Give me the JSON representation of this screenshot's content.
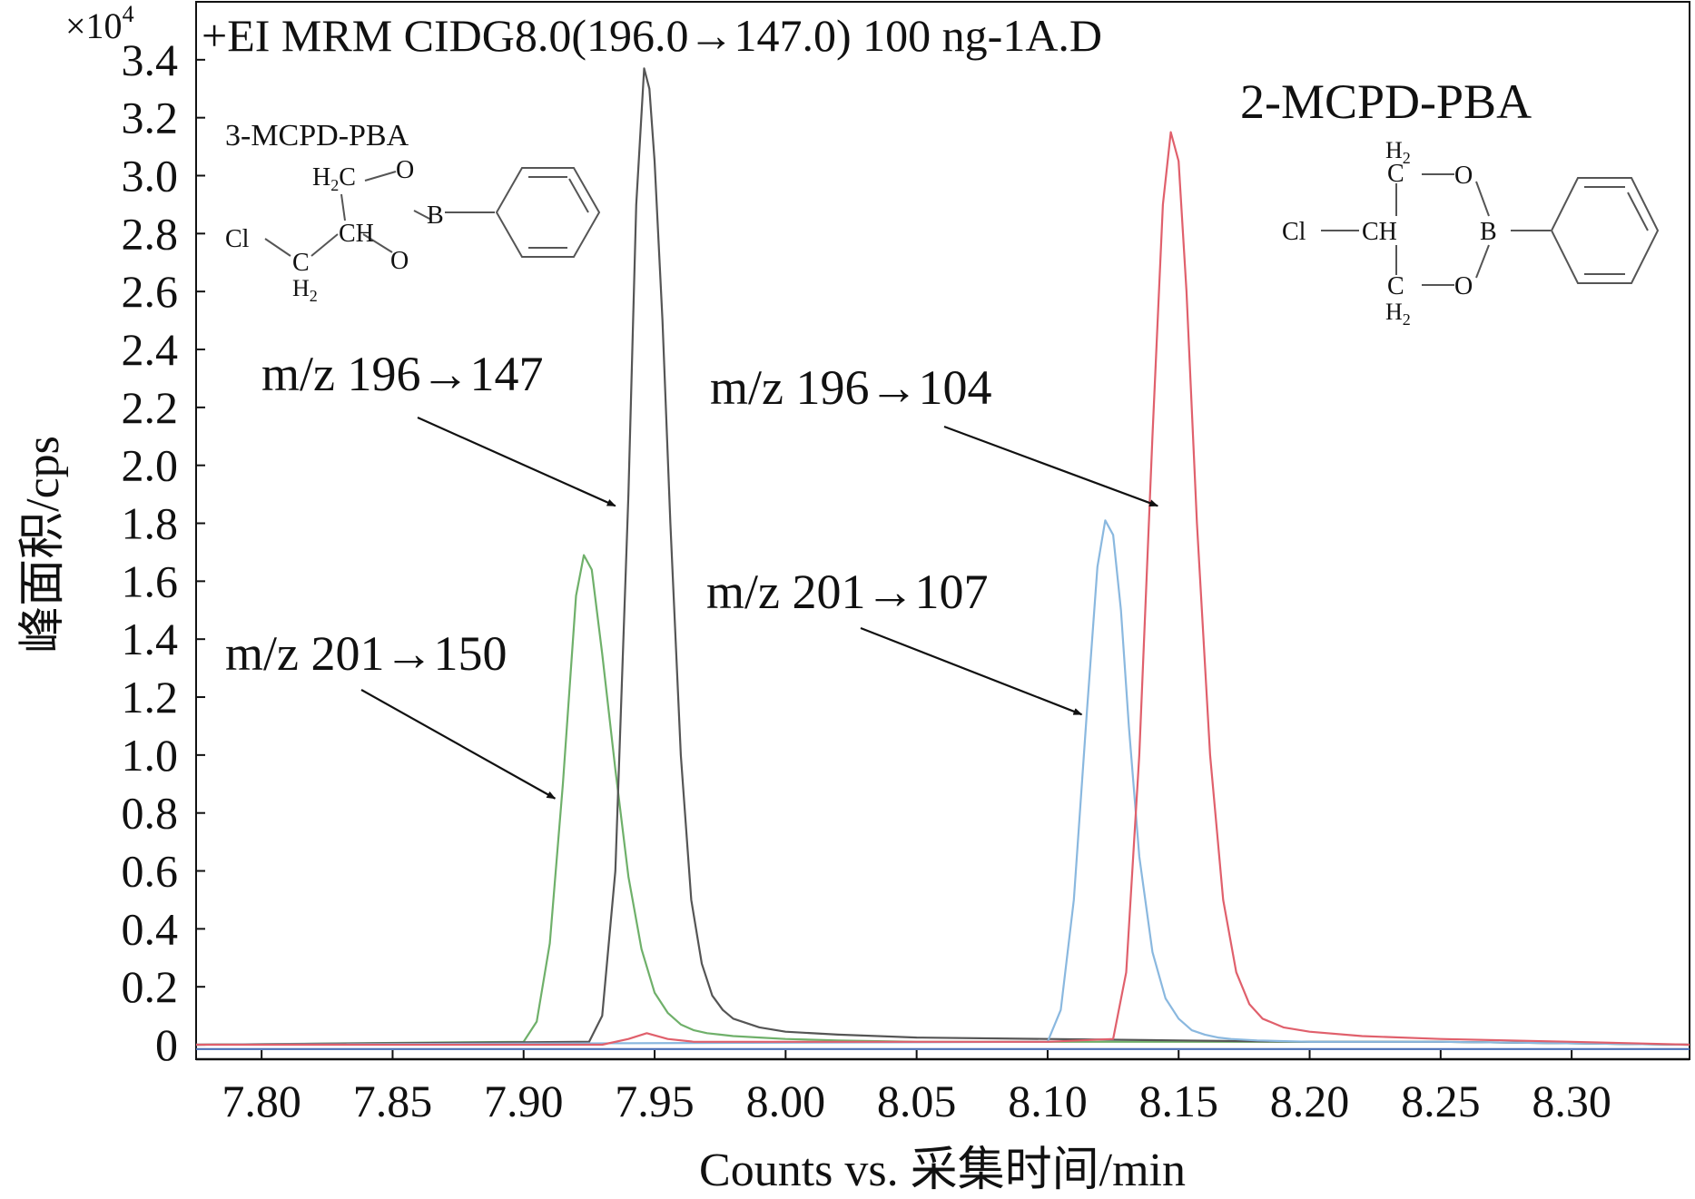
{
  "chart_data": {
    "type": "line",
    "title": "+EI MRM CIDG8.0(196.0→147.0) 100 ng-1A.D",
    "xlabel": "Counts vs.  采集时间/min",
    "ylabel": "峰面积/cps",
    "y_multiplier": "×10",
    "y_multiplier_exp": "4",
    "xlim": [
      7.775,
      8.345
    ],
    "ylim": [
      -0.05,
      3.6
    ],
    "x_ticks": [
      7.8,
      7.85,
      7.9,
      7.95,
      8.0,
      8.05,
      8.1,
      8.15,
      8.2,
      8.25,
      8.3
    ],
    "x_tick_labels": [
      "7.80",
      "7.85",
      "7.90",
      "7.95",
      "8.00",
      "8.05",
      "8.10",
      "8.15",
      "8.20",
      "8.25",
      "8.30"
    ],
    "y_ticks": [
      0,
      0.2,
      0.4,
      0.6,
      0.8,
      1.0,
      1.2,
      1.4,
      1.6,
      1.8,
      2.0,
      2.2,
      2.4,
      2.6,
      2.8,
      3.0,
      3.2,
      3.4
    ],
    "y_tick_labels": [
      "0",
      "0.2",
      "0.4",
      "0.6",
      "0.8",
      "1.0",
      "1.2",
      "1.4",
      "1.6",
      "1.8",
      "2.0",
      "2.2",
      "2.4",
      "2.6",
      "2.8",
      "3.0",
      "3.2",
      "3.4"
    ],
    "grid": false,
    "legend": "none",
    "series": [
      {
        "color": "#6fb06a",
        "x": [
          7.775,
          7.9,
          7.905,
          7.91,
          7.915,
          7.92,
          7.923,
          7.926,
          7.93,
          7.935,
          7.94,
          7.945,
          7.95,
          7.955,
          7.96,
          7.965,
          7.97,
          7.975,
          7.98,
          7.99,
          8.0,
          8.02,
          8.05,
          8.1,
          8.15,
          8.2,
          8.25,
          8.345
        ],
        "y": [
          0,
          0.01,
          0.08,
          0.35,
          0.9,
          1.55,
          1.69,
          1.64,
          1.35,
          0.95,
          0.58,
          0.33,
          0.18,
          0.11,
          0.07,
          0.05,
          0.04,
          0.035,
          0.03,
          0.025,
          0.02,
          0.015,
          0.01,
          0.01,
          0.01,
          0.01,
          0.01,
          0.0
        ]
      },
      {
        "color": "#555555",
        "x": [
          7.775,
          7.925,
          7.93,
          7.935,
          7.94,
          7.943,
          7.946,
          7.948,
          7.95,
          7.953,
          7.956,
          7.96,
          7.964,
          7.968,
          7.972,
          7.976,
          7.98,
          7.99,
          8.0,
          8.02,
          8.05,
          8.1,
          8.15,
          8.2,
          8.25,
          8.345
        ],
        "y": [
          0,
          0.01,
          0.1,
          0.6,
          1.9,
          2.9,
          3.37,
          3.3,
          3.05,
          2.5,
          1.8,
          1.0,
          0.5,
          0.28,
          0.17,
          0.12,
          0.09,
          0.06,
          0.045,
          0.035,
          0.025,
          0.02,
          0.015,
          0.01,
          0.01,
          0.0
        ]
      },
      {
        "color": "#8ab8df",
        "x": [
          7.775,
          8.1,
          8.105,
          8.11,
          8.115,
          8.119,
          8.122,
          8.125,
          8.128,
          8.131,
          8.135,
          8.14,
          8.145,
          8.15,
          8.155,
          8.16,
          8.165,
          8.17,
          8.18,
          8.2,
          8.25,
          8.345
        ],
        "y": [
          0,
          0.01,
          0.12,
          0.5,
          1.15,
          1.65,
          1.81,
          1.76,
          1.5,
          1.1,
          0.65,
          0.32,
          0.16,
          0.09,
          0.05,
          0.035,
          0.025,
          0.02,
          0.015,
          0.01,
          0.01,
          0.0
        ]
      },
      {
        "color": "#e0606c",
        "x": [
          7.775,
          7.93,
          7.94,
          7.947,
          7.955,
          7.965,
          8.0,
          8.05,
          8.1,
          8.125,
          8.13,
          8.135,
          8.14,
          8.144,
          8.147,
          8.15,
          8.153,
          8.157,
          8.162,
          8.167,
          8.172,
          8.177,
          8.182,
          8.19,
          8.2,
          8.22,
          8.25,
          8.3,
          8.345
        ],
        "y": [
          0,
          0.0,
          0.02,
          0.04,
          0.02,
          0.01,
          0.01,
          0.01,
          0.01,
          0.02,
          0.25,
          1.0,
          2.1,
          2.9,
          3.15,
          3.05,
          2.6,
          1.8,
          1.0,
          0.5,
          0.25,
          0.14,
          0.09,
          0.06,
          0.045,
          0.03,
          0.02,
          0.01,
          0.0
        ]
      },
      {
        "color": "#4a6fb5",
        "x": [
          7.775,
          8.345
        ],
        "y": [
          -0.015,
          -0.015
        ]
      }
    ],
    "annotations": [
      {
        "text": "m/z 196→147",
        "arrow_to": [
          7.935,
          1.86
        ]
      },
      {
        "text": "m/z 201→150",
        "arrow_to": [
          7.912,
          0.85
        ]
      },
      {
        "text": "m/z 196→104",
        "arrow_to": [
          8.142,
          1.86
        ]
      },
      {
        "text": "m/z 201→107",
        "arrow_to": [
          8.113,
          1.14
        ]
      }
    ],
    "structures": [
      {
        "name": "3-MCPD-PBA",
        "atoms": {
          "cl": "Cl",
          "ch": "CH",
          "c": "C",
          "h2": "H",
          "sub2": "2",
          "o": "O",
          "b": "B"
        }
      },
      {
        "name": "2-MCPD-PBA",
        "atoms": {
          "cl": "Cl",
          "ch": "CH",
          "c": "C",
          "h2": "H",
          "sub2": "2",
          "o": "O",
          "b": "B"
        }
      }
    ]
  }
}
